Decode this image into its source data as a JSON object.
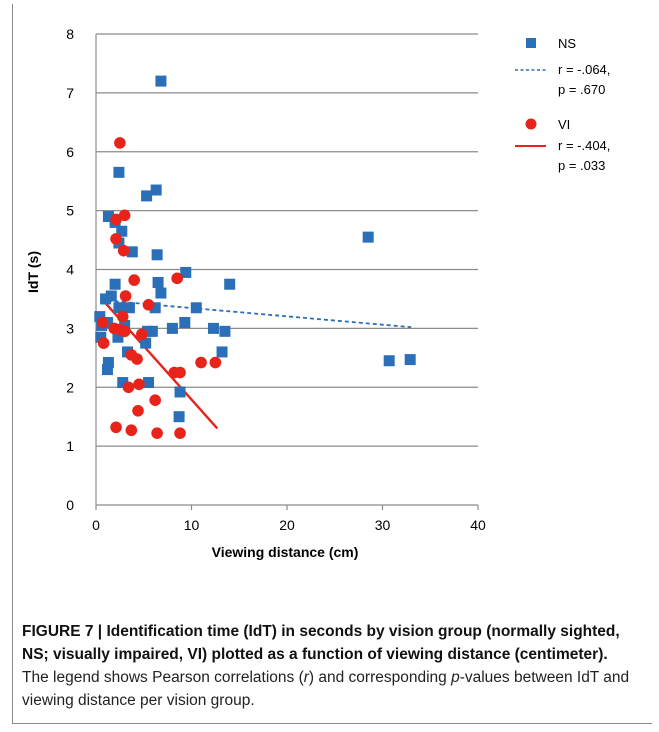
{
  "caption": {
    "label": "FIGURE 7 | ",
    "bold_text": "Identification time (IdT) in seconds by vision group (normally sighted, NS; visually impaired, VI) plotted as a function of viewing distance (centimeter).",
    "text_1": " The legend shows Pearson correlations (",
    "r_symbol": "r",
    "text_2": ") and corresponding ",
    "p_symbol": "p",
    "text_3": "-values between IdT and viewing distance per vision group."
  },
  "chart_data": {
    "type": "scatter",
    "title": "",
    "xlabel": "Viewing distance (cm)",
    "ylabel": "IdT (s)",
    "xlim": [
      0,
      40
    ],
    "ylim": [
      0,
      8
    ],
    "xticks": [
      "0",
      "10",
      "20",
      "30",
      "40"
    ],
    "yticks": [
      "0",
      "1",
      "2",
      "3",
      "4",
      "5",
      "6",
      "7",
      "8"
    ],
    "grid": "horizontal",
    "legend_position": "right",
    "series": [
      {
        "name": "NS",
        "stat_line1": "r = -.064,",
        "stat_line2": "p = .670",
        "marker": "square",
        "color": "#2a6fb8",
        "trend_style": "dashed",
        "trend": {
          "x": [
            0.5,
            33
          ],
          "y": [
            3.48,
            3.02
          ]
        },
        "points": [
          {
            "x": 6.8,
            "y": 7.2
          },
          {
            "x": 2.4,
            "y": 5.65
          },
          {
            "x": 6.3,
            "y": 5.35
          },
          {
            "x": 5.3,
            "y": 5.25
          },
          {
            "x": 1.3,
            "y": 4.9
          },
          {
            "x": 2.0,
            "y": 4.8
          },
          {
            "x": 2.7,
            "y": 4.65
          },
          {
            "x": 2.4,
            "y": 4.45
          },
          {
            "x": 3.8,
            "y": 4.3
          },
          {
            "x": 6.4,
            "y": 4.25
          },
          {
            "x": 28.5,
            "y": 4.55
          },
          {
            "x": 9.4,
            "y": 3.95
          },
          {
            "x": 6.5,
            "y": 3.78
          },
          {
            "x": 14.0,
            "y": 3.75
          },
          {
            "x": 2.0,
            "y": 3.75
          },
          {
            "x": 6.8,
            "y": 3.6
          },
          {
            "x": 1.6,
            "y": 3.55
          },
          {
            "x": 1.0,
            "y": 3.5
          },
          {
            "x": 6.2,
            "y": 3.35
          },
          {
            "x": 10.5,
            "y": 3.35
          },
          {
            "x": 3.5,
            "y": 3.35
          },
          {
            "x": 2.4,
            "y": 3.35
          },
          {
            "x": 0.4,
            "y": 3.2
          },
          {
            "x": 1.2,
            "y": 3.1
          },
          {
            "x": 9.3,
            "y": 3.1
          },
          {
            "x": 0.6,
            "y": 3.05
          },
          {
            "x": 3.0,
            "y": 3.05
          },
          {
            "x": 12.3,
            "y": 3.0
          },
          {
            "x": 8.0,
            "y": 3.0
          },
          {
            "x": 5.4,
            "y": 2.95
          },
          {
            "x": 5.9,
            "y": 2.95
          },
          {
            "x": 13.5,
            "y": 2.95
          },
          {
            "x": 0.5,
            "y": 2.85
          },
          {
            "x": 2.3,
            "y": 2.85
          },
          {
            "x": 5.2,
            "y": 2.75
          },
          {
            "x": 13.2,
            "y": 2.6
          },
          {
            "x": 3.3,
            "y": 2.6
          },
          {
            "x": 30.7,
            "y": 2.45
          },
          {
            "x": 32.9,
            "y": 2.47
          },
          {
            "x": 1.3,
            "y": 2.42
          },
          {
            "x": 1.2,
            "y": 2.3
          },
          {
            "x": 2.8,
            "y": 2.08
          },
          {
            "x": 5.5,
            "y": 2.08
          },
          {
            "x": 8.8,
            "y": 1.92
          },
          {
            "x": 8.7,
            "y": 1.5
          }
        ]
      },
      {
        "name": "VI",
        "stat_line1": "r = -.404,",
        "stat_line2": "p = .033",
        "marker": "circle",
        "color": "#e8231a",
        "trend_style": "solid",
        "trend": {
          "x": [
            0.6,
            12.7
          ],
          "y": [
            3.5,
            1.3
          ]
        },
        "points": [
          {
            "x": 2.5,
            "y": 6.15
          },
          {
            "x": 3.0,
            "y": 4.92
          },
          {
            "x": 2.1,
            "y": 4.85
          },
          {
            "x": 2.1,
            "y": 4.52
          },
          {
            "x": 2.9,
            "y": 4.32
          },
          {
            "x": 8.5,
            "y": 3.85
          },
          {
            "x": 4.0,
            "y": 3.82
          },
          {
            "x": 3.1,
            "y": 3.55
          },
          {
            "x": 5.5,
            "y": 3.4
          },
          {
            "x": 2.8,
            "y": 3.2
          },
          {
            "x": 0.7,
            "y": 3.1
          },
          {
            "x": 1.9,
            "y": 3.0
          },
          {
            "x": 2.5,
            "y": 2.98
          },
          {
            "x": 3.0,
            "y": 2.95
          },
          {
            "x": 4.8,
            "y": 2.9
          },
          {
            "x": 0.8,
            "y": 2.75
          },
          {
            "x": 3.7,
            "y": 2.55
          },
          {
            "x": 4.3,
            "y": 2.48
          },
          {
            "x": 11.0,
            "y": 2.42
          },
          {
            "x": 12.5,
            "y": 2.42
          },
          {
            "x": 8.2,
            "y": 2.25
          },
          {
            "x": 8.8,
            "y": 2.25
          },
          {
            "x": 4.5,
            "y": 2.05
          },
          {
            "x": 3.4,
            "y": 2.0
          },
          {
            "x": 6.2,
            "y": 1.78
          },
          {
            "x": 4.4,
            "y": 1.6
          },
          {
            "x": 2.1,
            "y": 1.32
          },
          {
            "x": 3.7,
            "y": 1.27
          },
          {
            "x": 6.4,
            "y": 1.22
          },
          {
            "x": 8.8,
            "y": 1.22
          }
        ]
      }
    ]
  }
}
